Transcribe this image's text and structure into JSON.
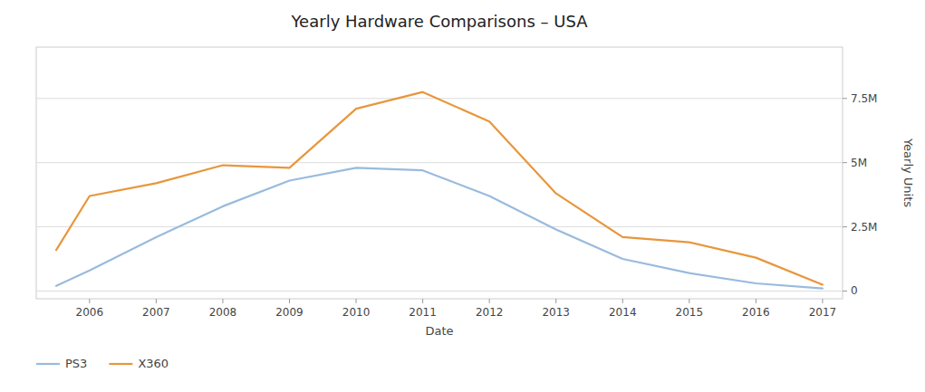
{
  "chart_data": {
    "type": "line",
    "title": "Yearly Hardware Comparisons – USA",
    "xlabel": "Date",
    "ylabel": "Yearly Units",
    "x": [
      2005.5,
      2006,
      2007,
      2008,
      2009,
      2010,
      2011,
      2012,
      2013,
      2014,
      2015,
      2016,
      2017
    ],
    "series": [
      {
        "name": "PS3",
        "color": "#99bbdd",
        "values": [
          200000,
          800000,
          2100000,
          3300000,
          4300000,
          4800000,
          4700000,
          3700000,
          2400000,
          1250000,
          700000,
          300000,
          100000
        ]
      },
      {
        "name": "X360",
        "color": "#e8963c",
        "values": [
          1600000,
          3700000,
          4200000,
          4900000,
          4800000,
          7100000,
          7750000,
          6600000,
          3800000,
          2100000,
          1900000,
          1300000,
          250000
        ]
      }
    ],
    "xlim": [
      2005.2,
      2017.3
    ],
    "xticks": [
      2006,
      2007,
      2008,
      2009,
      2010,
      2011,
      2012,
      2013,
      2014,
      2015,
      2016,
      2017
    ],
    "ylim": [
      -300000,
      9500000
    ],
    "yticks": [
      0,
      {
        "value": 2500000,
        "label": "2.5M"
      },
      {
        "value": 5000000,
        "label": "5M"
      },
      {
        "value": 7500000,
        "label": "7.5M"
      }
    ],
    "grid": true,
    "legend": "bottom"
  }
}
